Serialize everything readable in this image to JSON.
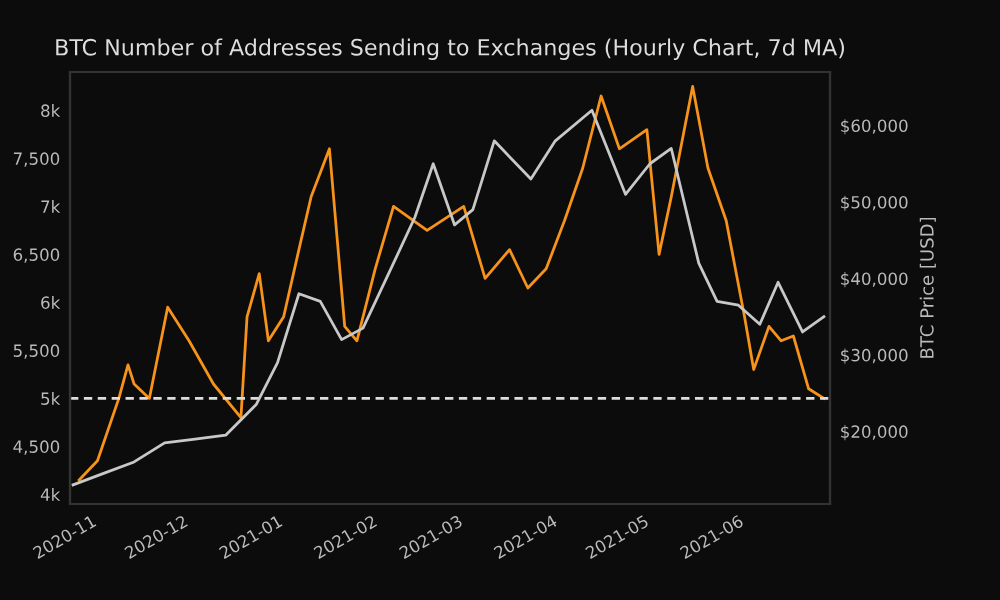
{
  "chart_data": {
    "type": "line",
    "title": "BTC Number of Addresses Sending to Exchanges (Hourly Chart, 7d MA)",
    "y2label": "BTC Price [USD]",
    "xlim": [
      "2020-10-25",
      "2021-07-01"
    ],
    "xticks": [
      {
        "value": "2020-11-01",
        "label": "2020-11"
      },
      {
        "value": "2020-12-01",
        "label": "2020-12"
      },
      {
        "value": "2021-01-01",
        "label": "2021-01"
      },
      {
        "value": "2021-02-01",
        "label": "2021-02"
      },
      {
        "value": "2021-03-01",
        "label": "2021-03"
      },
      {
        "value": "2021-04-01",
        "label": "2021-04"
      },
      {
        "value": "2021-05-01",
        "label": "2021-05"
      },
      {
        "value": "2021-06-01",
        "label": "2021-06"
      }
    ],
    "ylim": [
      3900,
      8400
    ],
    "yticks": [
      {
        "value": 4000,
        "label": "4k"
      },
      {
        "value": 4500,
        "label": "4,500"
      },
      {
        "value": 5000,
        "label": "5k"
      },
      {
        "value": 5500,
        "label": "5,500"
      },
      {
        "value": 6000,
        "label": "6k"
      },
      {
        "value": 6500,
        "label": "6,500"
      },
      {
        "value": 7000,
        "label": "7k"
      },
      {
        "value": 7500,
        "label": "7,500"
      },
      {
        "value": 8000,
        "label": "8k"
      }
    ],
    "y2lim": [
      10500,
      67000
    ],
    "y2ticks": [
      {
        "value": 20000,
        "label": "$20,000"
      },
      {
        "value": 30000,
        "label": "$30,000"
      },
      {
        "value": 40000,
        "label": "$40,000"
      },
      {
        "value": 50000,
        "label": "$50,000"
      },
      {
        "value": 60000,
        "label": "$60,000"
      }
    ],
    "grid": false,
    "ref_lines": [
      {
        "axis": "y",
        "value": 5000,
        "color": "#dddddd",
        "line_style": "dashed"
      }
    ],
    "series": [
      {
        "color": "#f7931a",
        "x": [
          "2020-10-28",
          "2020-11-03",
          "2020-11-10",
          "2020-11-13",
          "2020-11-15",
          "2020-11-20",
          "2020-11-26",
          "2020-12-03",
          "2020-12-11",
          "2020-12-20",
          "2020-12-22",
          "2020-12-26",
          "2020-12-29",
          "2021-01-03",
          "2021-01-08",
          "2021-01-12",
          "2021-01-18",
          "2021-01-23",
          "2021-01-27",
          "2021-02-02",
          "2021-02-08",
          "2021-02-19",
          "2021-03-03",
          "2021-03-10",
          "2021-03-18",
          "2021-03-24",
          "2021-03-30",
          "2021-04-05",
          "2021-04-11",
          "2021-04-17",
          "2021-04-23",
          "2021-05-02",
          "2021-05-06",
          "2021-05-10",
          "2021-05-17",
          "2021-05-22",
          "2021-05-28",
          "2021-06-03",
          "2021-06-06",
          "2021-06-11",
          "2021-06-15",
          "2021-06-19",
          "2021-06-24",
          "2021-06-29"
        ],
        "values": [
          4150,
          4350,
          5000,
          5350,
          5150,
          5000,
          5950,
          5600,
          5150,
          4800,
          5850,
          6300,
          5600,
          5850,
          6550,
          7100,
          7600,
          5750,
          5600,
          6350,
          7000,
          6750,
          7000,
          6250,
          6550,
          6150,
          6350,
          6850,
          7400,
          8150,
          7600,
          7800,
          6500,
          7100,
          8250,
          7400,
          6850,
          5850,
          5300,
          5750,
          5600,
          5650,
          5100,
          5000
        ]
      },
      {
        "color": "#c8c8c8",
        "axis": "y2",
        "x": [
          "2020-10-26",
          "2020-11-05",
          "2020-11-15",
          "2020-11-25",
          "2020-12-05",
          "2020-12-15",
          "2020-12-25",
          "2021-01-01",
          "2021-01-08",
          "2021-01-15",
          "2021-01-22",
          "2021-01-29",
          "2021-02-08",
          "2021-02-15",
          "2021-02-21",
          "2021-02-28",
          "2021-03-06",
          "2021-03-13",
          "2021-03-25",
          "2021-04-02",
          "2021-04-14",
          "2021-04-25",
          "2021-05-03",
          "2021-05-10",
          "2021-05-19",
          "2021-05-25",
          "2021-06-01",
          "2021-06-08",
          "2021-06-14",
          "2021-06-22",
          "2021-06-29"
        ],
        "values": [
          13000,
          14500,
          16000,
          18500,
          19000,
          19500,
          23500,
          29000,
          38000,
          37000,
          32000,
          33500,
          42000,
          48000,
          55000,
          47000,
          49000,
          58000,
          53000,
          58000,
          62000,
          51000,
          55000,
          57000,
          42000,
          37000,
          36500,
          34000,
          39500,
          33000,
          35000
        ]
      }
    ]
  }
}
